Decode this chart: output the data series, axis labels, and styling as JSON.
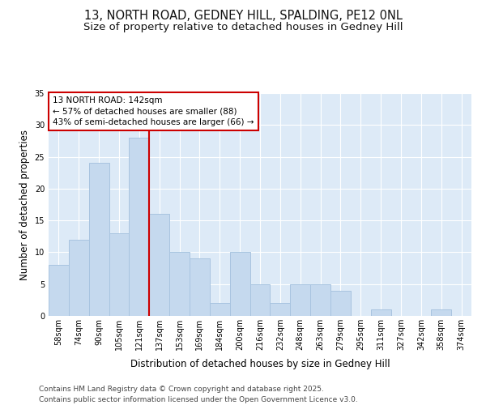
{
  "title_line1": "13, NORTH ROAD, GEDNEY HILL, SPALDING, PE12 0NL",
  "title_line2": "Size of property relative to detached houses in Gedney Hill",
  "xlabel": "Distribution of detached houses by size in Gedney Hill",
  "ylabel": "Number of detached properties",
  "categories": [
    "58sqm",
    "74sqm",
    "90sqm",
    "105sqm",
    "121sqm",
    "137sqm",
    "153sqm",
    "169sqm",
    "184sqm",
    "200sqm",
    "216sqm",
    "232sqm",
    "248sqm",
    "263sqm",
    "279sqm",
    "295sqm",
    "311sqm",
    "327sqm",
    "342sqm",
    "358sqm",
    "374sqm"
  ],
  "values": [
    8,
    12,
    24,
    13,
    28,
    16,
    10,
    9,
    2,
    10,
    5,
    2,
    5,
    5,
    4,
    0,
    1,
    0,
    0,
    1,
    0
  ],
  "bar_color": "#c5d9ee",
  "bar_edge_color": "#a8c4e0",
  "marker_label_line1": "13 NORTH ROAD: 142sqm",
  "marker_label_line2": "← 57% of detached houses are smaller (88)",
  "marker_label_line3": "43% of semi-detached houses are larger (66) →",
  "vline_color": "#cc0000",
  "annotation_box_color": "#cc0000",
  "background_color": "#ddeaf7",
  "ylim": [
    0,
    35
  ],
  "yticks": [
    0,
    5,
    10,
    15,
    20,
    25,
    30,
    35
  ],
  "footer_line1": "Contains HM Land Registry data © Crown copyright and database right 2025.",
  "footer_line2": "Contains public sector information licensed under the Open Government Licence v3.0.",
  "title_fontsize": 10.5,
  "subtitle_fontsize": 9.5,
  "axis_label_fontsize": 8.5,
  "tick_fontsize": 7,
  "annotation_fontsize": 7.5,
  "footer_fontsize": 6.5
}
